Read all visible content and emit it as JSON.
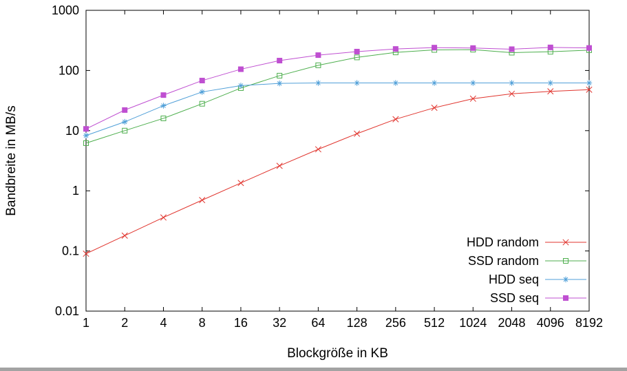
{
  "page": {
    "background": "#ffffff",
    "frame_color": "#000000",
    "bottom_edge_color": "#a3a3a3"
  },
  "chart_data": {
    "type": "line",
    "title": "",
    "xlabel": "Blockgröße in KB",
    "ylabel": "Bandbreite in MB/s",
    "x_scale": "log2",
    "y_scale": "log10",
    "xlim": [
      1,
      8192
    ],
    "ylim": [
      0.01,
      1000
    ],
    "grid": false,
    "legend_position": "inside-bottom-right",
    "x_ticks": [
      1,
      2,
      4,
      8,
      16,
      32,
      64,
      128,
      256,
      512,
      1024,
      2048,
      4096,
      8192
    ],
    "x_tick_labels": [
      "1",
      "2",
      "4",
      "8",
      "16",
      "32",
      "64",
      "128",
      "256",
      "512",
      "1024",
      "2048",
      "4096",
      "8192"
    ],
    "y_ticks": [
      0.01,
      0.1,
      1,
      10,
      100,
      1000
    ],
    "y_tick_labels": [
      "0.01",
      "0.1",
      "1",
      "10",
      "100",
      "1000"
    ],
    "series": [
      {
        "name": "HDD random",
        "color": "#e0332c",
        "marker": "cross",
        "values": [
          0.09,
          0.18,
          0.36,
          0.7,
          1.35,
          2.6,
          4.9,
          8.9,
          15.5,
          24,
          34,
          41,
          45,
          48
        ]
      },
      {
        "name": "SSD random",
        "color": "#4cae4c",
        "marker": "open-square",
        "values": [
          6.2,
          10,
          16,
          28,
          51,
          82,
          122,
          165,
          200,
          220,
          222,
          198,
          205,
          218
        ]
      },
      {
        "name": "HDD seq",
        "color": "#4f9fd8",
        "marker": "asterisk",
        "values": [
          8.3,
          14,
          26,
          44,
          56,
          61,
          62,
          62,
          62,
          62,
          62,
          62,
          62,
          62
        ]
      },
      {
        "name": "SSD seq",
        "color": "#bf4fd1",
        "marker": "filled-square",
        "values": [
          10.7,
          22,
          39,
          68,
          105,
          146,
          180,
          206,
          228,
          240,
          236,
          226,
          242,
          237
        ]
      }
    ]
  }
}
